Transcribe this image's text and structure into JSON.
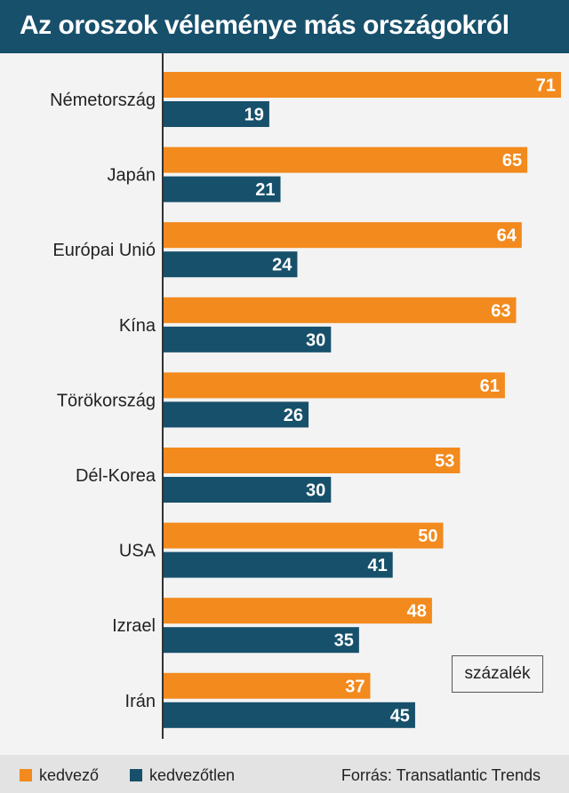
{
  "header": {
    "title": "Az oroszok véleménye más országokról"
  },
  "unit_label": "százalék",
  "source": "Forrás: Transatlantic Trends",
  "colors": {
    "favorable": "#f28a1d",
    "unfavorable": "#17506b",
    "header": "#17506b"
  },
  "chart_data": {
    "type": "bar",
    "orientation": "horizontal",
    "title": "Az oroszok véleménye más országokról",
    "categories": [
      "Németország",
      "Japán",
      "Európai Unió",
      "Kína",
      "Törökország",
      "Dél-Korea",
      "USA",
      "Izrael",
      "Irán"
    ],
    "series": [
      {
        "name": "kedvező",
        "values": [
          71,
          65,
          64,
          63,
          61,
          53,
          50,
          48,
          37
        ]
      },
      {
        "name": "kedvezőtlen",
        "values": [
          19,
          21,
          24,
          30,
          26,
          30,
          41,
          35,
          45
        ]
      }
    ],
    "xlim": [
      0,
      71
    ],
    "unit": "százalék",
    "legend_position": "bottom-left",
    "data_labels": true,
    "grid": false
  }
}
